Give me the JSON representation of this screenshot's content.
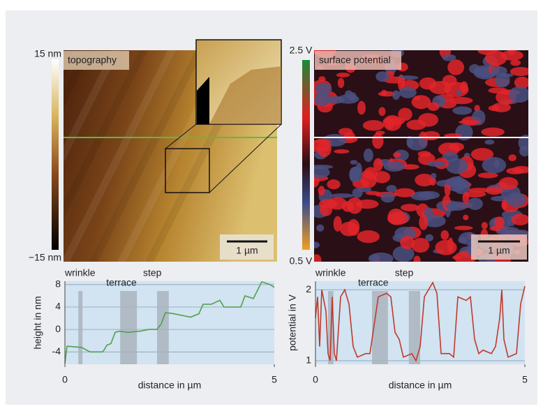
{
  "panels": [
    {
      "label": "topography",
      "colorbar_top": "15 nm",
      "colorbar_bottom": "−15 nm",
      "scale_bar": "1 µm"
    },
    {
      "label": "surface potential",
      "colorbar_top": "2.5 V",
      "colorbar_bottom": "0.5 V",
      "scale_bar": "1 µm"
    }
  ],
  "chart_data": [
    {
      "type": "line",
      "x_label": "distance in µm",
      "y_label": "height in nm",
      "color": "#4fa04a",
      "xlim": [
        0,
        5
      ],
      "xticks": [
        0,
        5
      ],
      "ylim": [
        -6.2,
        8.6
      ],
      "yticks": [
        -4,
        0,
        4,
        8
      ],
      "grid": true,
      "annotations": [
        {
          "text": "wrinkle",
          "x": [
            0.32,
            0.42
          ]
        },
        {
          "text": "terrace",
          "x": [
            1.32,
            1.72
          ]
        },
        {
          "text": "step",
          "x": [
            2.2,
            2.48
          ]
        }
      ],
      "x": [
        0,
        0.05,
        0.1,
        0.4,
        0.6,
        0.9,
        0.95,
        1.0,
        1.1,
        1.2,
        1.3,
        1.5,
        1.8,
        2.0,
        2.2,
        2.3,
        2.4,
        2.6,
        2.8,
        3.0,
        3.2,
        3.3,
        3.5,
        3.7,
        3.8,
        4.2,
        4.3,
        4.5,
        4.6,
        4.7,
        4.9,
        5.0
      ],
      "values": [
        -6,
        -3,
        -3,
        -3.2,
        -4,
        -4,
        -3.5,
        -2.8,
        -2.5,
        -0.5,
        -0.3,
        -0.5,
        -0.3,
        0,
        0,
        1,
        3,
        2.8,
        2.5,
        2.2,
        2.8,
        4.5,
        4.5,
        5.2,
        4,
        4,
        6,
        5.5,
        7,
        8.5,
        8,
        7.5
      ]
    },
    {
      "type": "line",
      "x_label": "distance in µm",
      "y_label": "potential in V",
      "color": "#c0392b",
      "xlim": [
        0,
        5
      ],
      "xticks": [
        0,
        5
      ],
      "ylim": [
        0.95,
        2.12
      ],
      "yticks": [
        1,
        2
      ],
      "grid": true,
      "annotations": [
        {
          "text": "wrinkle",
          "x": [
            0.3,
            0.43
          ]
        },
        {
          "text": "terrace",
          "x": [
            1.35,
            1.73
          ]
        },
        {
          "text": "step",
          "x": [
            2.23,
            2.5
          ]
        }
      ],
      "x": [
        0,
        0.05,
        0.1,
        0.15,
        0.25,
        0.3,
        0.35,
        0.4,
        0.45,
        0.5,
        0.6,
        0.7,
        0.8,
        0.9,
        1.0,
        1.2,
        1.3,
        1.4,
        1.5,
        1.7,
        1.8,
        1.9,
        2.0,
        2.1,
        2.3,
        2.4,
        2.5,
        2.6,
        2.8,
        2.9,
        3.0,
        3.2,
        3.3,
        3.4,
        3.6,
        3.7,
        3.8,
        3.9,
        4.0,
        4.2,
        4.3,
        4.4,
        4.45,
        4.5,
        4.6,
        4.8,
        4.9,
        5.0
      ],
      "values": [
        1.6,
        1.9,
        1.2,
        2.0,
        1.7,
        1.1,
        1.0,
        1.9,
        1.1,
        1.0,
        1.9,
        2.0,
        1.8,
        1.2,
        1.05,
        1.1,
        1.1,
        1.5,
        1.9,
        1.95,
        1.9,
        1.4,
        1.3,
        1.05,
        1.1,
        1.0,
        1.2,
        1.9,
        2.1,
        1.95,
        1.1,
        1.1,
        1.05,
        1.9,
        1.85,
        1.9,
        1.3,
        1.1,
        1.15,
        1.1,
        1.2,
        1.6,
        2.0,
        1.3,
        1.05,
        1.1,
        1.8,
        2.05
      ]
    }
  ]
}
